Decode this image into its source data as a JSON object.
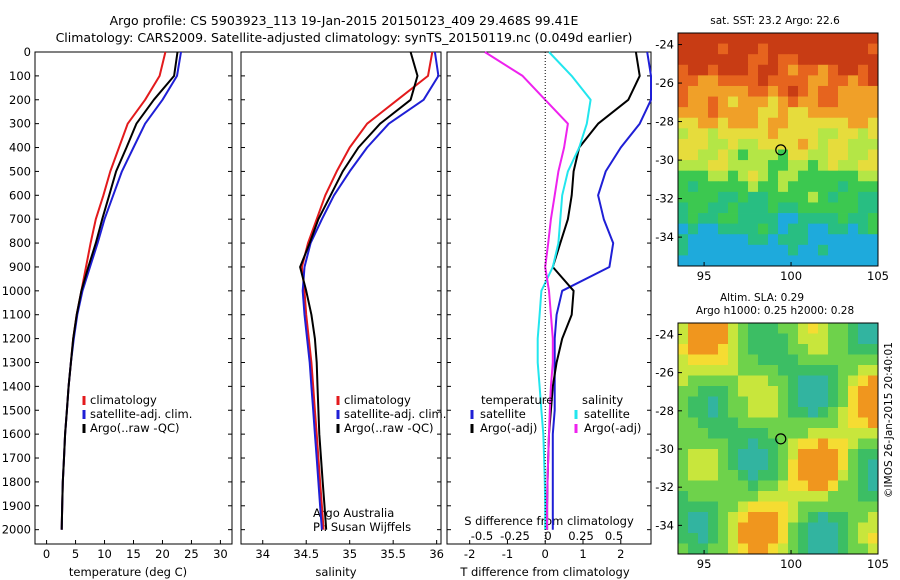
{
  "header": {
    "line1": "Argo profile: CS 5903923_113 19-Jan-2015 20150123_409 29.468S 99.41E",
    "line2": "Climatology: CARS2009. Satellite-adjusted climatology: synTS_20150119.nc (0.049d earlier)"
  },
  "colors": {
    "climatology": "#e31a1c",
    "satellite": "#1f1fd6",
    "argo": "#000000",
    "sal_satellite": "#22e6ee",
    "sal_argo": "#ee22ee"
  },
  "depth_axis": {
    "ticks": [
      0,
      100,
      200,
      300,
      400,
      500,
      600,
      700,
      800,
      900,
      1000,
      1100,
      1200,
      1300,
      1400,
      1500,
      1600,
      1700,
      1800,
      1900,
      2000
    ],
    "range": [
      0,
      2060
    ]
  },
  "panels": {
    "temperature": {
      "xlabel": "temperature (deg C)",
      "xlim": [
        -2,
        32
      ],
      "xticks": [
        0,
        5,
        10,
        15,
        20,
        25,
        30
      ],
      "legend": [
        "climatology",
        "satellite-adj. clim.",
        "Argo(..raw -QC)"
      ]
    },
    "salinity": {
      "xlabel": "salinity",
      "xlim": [
        33.75,
        36.05
      ],
      "xticks": [
        34,
        34.5,
        35,
        35.5,
        36
      ],
      "legend": [
        "climatology",
        "satellite-adj. clim.",
        "Argo(..raw -QC)"
      ],
      "note1": "Argo Australia",
      "note2": "PI: Susan Wijffels"
    },
    "difference": {
      "xlabel": "T difference from climatology",
      "xlim": [
        -2.6,
        2.8
      ],
      "xticks": [
        -2,
        -1,
        0,
        1,
        2
      ],
      "top_label": "S difference from climatology",
      "top_ticks": [
        "-0.5",
        "-0.25",
        "0",
        "0.25",
        "0.5"
      ],
      "legend_temp_title": "temperature",
      "legend_sal_title": "salinity",
      "legend_items": [
        "satellite",
        "Argo(-adj)",
        "satellite",
        "Argo(-adj)"
      ]
    }
  },
  "maps": {
    "sst_title": "sat. SST: 23.2  Argo: 22.6",
    "sla_title1": "Altim. SLA: 0.29",
    "sla_title2": "Argo h1000: 0.25 h2000: 0.28",
    "yticks": [
      -24,
      -26,
      -28,
      -30,
      -32,
      -34
    ],
    "xticks": [
      95,
      100,
      105
    ],
    "argo_position": {
      "lon": 99.41,
      "lat": -29.468
    }
  },
  "footer_stamp": "©IMOS 26-Jan-2015 20:40:01",
  "chart_data": [
    {
      "type": "line",
      "title": "",
      "xlabel": "temperature (deg C)",
      "ylabel": "",
      "xlim": [
        -2,
        32
      ],
      "ylim": [
        2060,
        0
      ],
      "series": [
        {
          "name": "climatology",
          "x": [
            20.5,
            19.5,
            17,
            14,
            12.5,
            11,
            9.8,
            8.5,
            7.6,
            6.8,
            6,
            5.2,
            4.6,
            4.2,
            3.8,
            3.5,
            3.2,
            3.0,
            2.8,
            2.7,
            2.6
          ],
          "y": [
            0,
            100,
            200,
            300,
            400,
            500,
            600,
            700,
            800,
            900,
            1000,
            1100,
            1200,
            1300,
            1400,
            1500,
            1600,
            1700,
            1800,
            1900,
            2000
          ]
        },
        {
          "name": "satellite-adj. clim.",
          "x": [
            23.2,
            22.5,
            20,
            17,
            15,
            13,
            11.5,
            10,
            8.8,
            7.5,
            6.2,
            5.3,
            4.7,
            4.2,
            3.8,
            3.5,
            3.2,
            3.0,
            2.8,
            2.7,
            2.6
          ],
          "y": [
            0,
            100,
            200,
            300,
            400,
            500,
            600,
            700,
            800,
            900,
            1000,
            1100,
            1200,
            1300,
            1400,
            1500,
            1600,
            1700,
            1800,
            1900,
            2000
          ]
        },
        {
          "name": "Argo(..raw -QC)",
          "x": [
            22.6,
            22,
            18.5,
            15.5,
            13.8,
            12,
            10.8,
            9.6,
            8.5,
            7.2,
            6.0,
            5.2,
            4.6,
            4.2,
            3.8,
            3.5,
            3.2,
            3.0,
            2.8,
            2.7,
            2.6
          ],
          "y": [
            0,
            100,
            200,
            300,
            400,
            500,
            600,
            700,
            800,
            900,
            1000,
            1100,
            1200,
            1300,
            1400,
            1500,
            1600,
            1700,
            1800,
            1900,
            2000
          ]
        }
      ]
    },
    {
      "type": "line",
      "title": "",
      "xlabel": "salinity",
      "ylabel": "",
      "xlim": [
        33.75,
        36.05
      ],
      "ylim": [
        2060,
        0
      ],
      "series": [
        {
          "name": "climatology",
          "x": [
            35.95,
            35.9,
            35.55,
            35.2,
            35.0,
            34.85,
            34.72,
            34.62,
            34.52,
            34.45,
            34.48,
            34.5,
            34.53,
            34.56,
            34.58,
            34.6,
            34.62,
            34.64,
            34.66,
            34.68,
            34.7
          ],
          "y": [
            0,
            100,
            200,
            300,
            400,
            500,
            600,
            700,
            800,
            900,
            1000,
            1100,
            1200,
            1300,
            1400,
            1500,
            1600,
            1700,
            1800,
            1900,
            2000
          ]
        },
        {
          "name": "satellite-adj. clim.",
          "x": [
            35.98,
            36.02,
            35.85,
            35.45,
            35.2,
            35.0,
            34.82,
            34.68,
            34.55,
            34.48,
            34.46,
            34.48,
            34.51,
            34.54,
            34.56,
            34.58,
            34.6,
            34.62,
            34.64,
            34.66,
            34.68
          ],
          "y": [
            0,
            100,
            200,
            300,
            400,
            500,
            600,
            700,
            800,
            900,
            1000,
            1100,
            1200,
            1300,
            1400,
            1500,
            1600,
            1700,
            1800,
            1900,
            2000
          ]
        },
        {
          "name": "Argo(..raw -QC)",
          "x": [
            35.7,
            35.78,
            35.7,
            35.35,
            35.1,
            34.92,
            34.78,
            34.64,
            34.54,
            34.43,
            34.5,
            34.56,
            34.6,
            34.62,
            34.63,
            34.64,
            34.65,
            34.67,
            34.69,
            34.71,
            34.73
          ],
          "y": [
            0,
            100,
            200,
            300,
            400,
            500,
            600,
            700,
            800,
            900,
            1000,
            1100,
            1200,
            1300,
            1400,
            1500,
            1600,
            1700,
            1800,
            1900,
            2000
          ]
        }
      ]
    },
    {
      "type": "line",
      "title": "",
      "xlabel": "T difference from climatology",
      "ylabel": "",
      "xlim": [
        -2.6,
        2.8
      ],
      "ylim": [
        2060,
        0
      ],
      "series": [
        {
          "name": "satellite",
          "x": [
            2.7,
            2.8,
            2.8,
            2.5,
            2.0,
            1.6,
            1.4,
            1.55,
            1.8,
            1.7,
            0.45,
            0.3,
            0.25,
            0.25,
            0.25,
            0.25,
            0.2,
            0.2,
            0.2,
            0.2,
            0.2
          ],
          "y": [
            0,
            100,
            200,
            300,
            400,
            500,
            600,
            700,
            800,
            900,
            1000,
            1100,
            1200,
            1300,
            1400,
            1500,
            1600,
            1700,
            1800,
            1900,
            2000
          ]
        },
        {
          "name": "Argo(-adj)",
          "x": [
            2.4,
            2.5,
            2.2,
            1.4,
            0.9,
            0.75,
            0.7,
            0.6,
            0.4,
            0.2,
            0.75,
            0.7,
            0.45,
            0.3,
            0.2,
            0.15,
            0.1,
            0.08,
            0.06,
            0.05,
            0.05
          ],
          "y": [
            0,
            100,
            200,
            300,
            400,
            500,
            600,
            700,
            800,
            900,
            1000,
            1100,
            1200,
            1300,
            1400,
            1500,
            1600,
            1700,
            1800,
            1900,
            2000
          ]
        },
        {
          "name": "satellite",
          "x": [
            0.1,
            0.7,
            1.2,
            1.1,
            0.9,
            0.6,
            0.45,
            0.4,
            0.35,
            0.2,
            -0.1,
            -0.15,
            -0.2,
            -0.2,
            -0.15,
            -0.1,
            -0.05,
            -0.03,
            -0.01,
            0,
            0
          ],
          "y": [
            0,
            100,
            200,
            300,
            400,
            500,
            600,
            700,
            800,
            900,
            1000,
            1100,
            1200,
            1300,
            1400,
            1500,
            1600,
            1700,
            1800,
            1900,
            2000
          ]
        },
        {
          "name": "Argo(-adj)",
          "x": [
            -1.6,
            -0.6,
            0.0,
            0.6,
            0.5,
            0.35,
            0.25,
            0.15,
            0.08,
            0.0,
            0.1,
            0.15,
            0.2,
            0.2,
            0.15,
            0.12,
            0.1,
            0.08,
            0.06,
            0.05,
            0.05
          ],
          "y": [
            0,
            100,
            200,
            300,
            400,
            500,
            600,
            700,
            800,
            900,
            1000,
            1100,
            1200,
            1300,
            1400,
            1500,
            1600,
            1700,
            1800,
            1900,
            2000
          ]
        }
      ]
    }
  ]
}
